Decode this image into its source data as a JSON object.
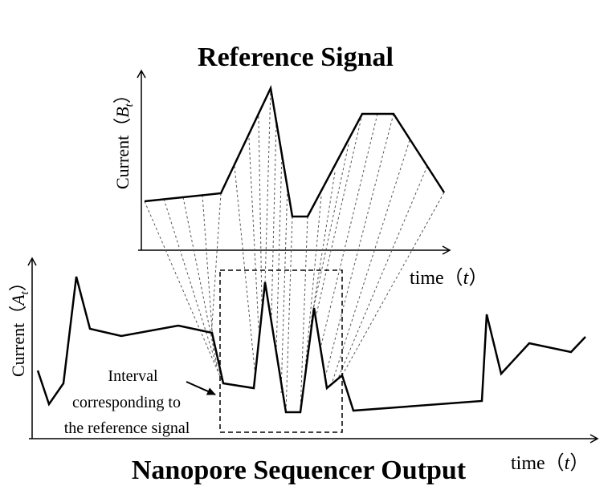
{
  "top_panel": {
    "title": "Reference Signal",
    "y_label_prefix": "Current",
    "y_label_symbol": "B",
    "y_label_subscript": "t",
    "x_label_prefix": "time",
    "x_label_symbol": "t"
  },
  "bottom_panel": {
    "title": "Nanopore Sequencer Output",
    "y_label_prefix": "Current",
    "y_label_symbol": "A",
    "y_label_subscript": "t",
    "x_label_prefix": "time",
    "x_label_symbol": "t"
  },
  "annotation": {
    "lines": [
      "Interval",
      "corresponding to",
      "the reference signal"
    ]
  },
  "colors": {
    "ink": "#000000",
    "connector": "#555555"
  }
}
